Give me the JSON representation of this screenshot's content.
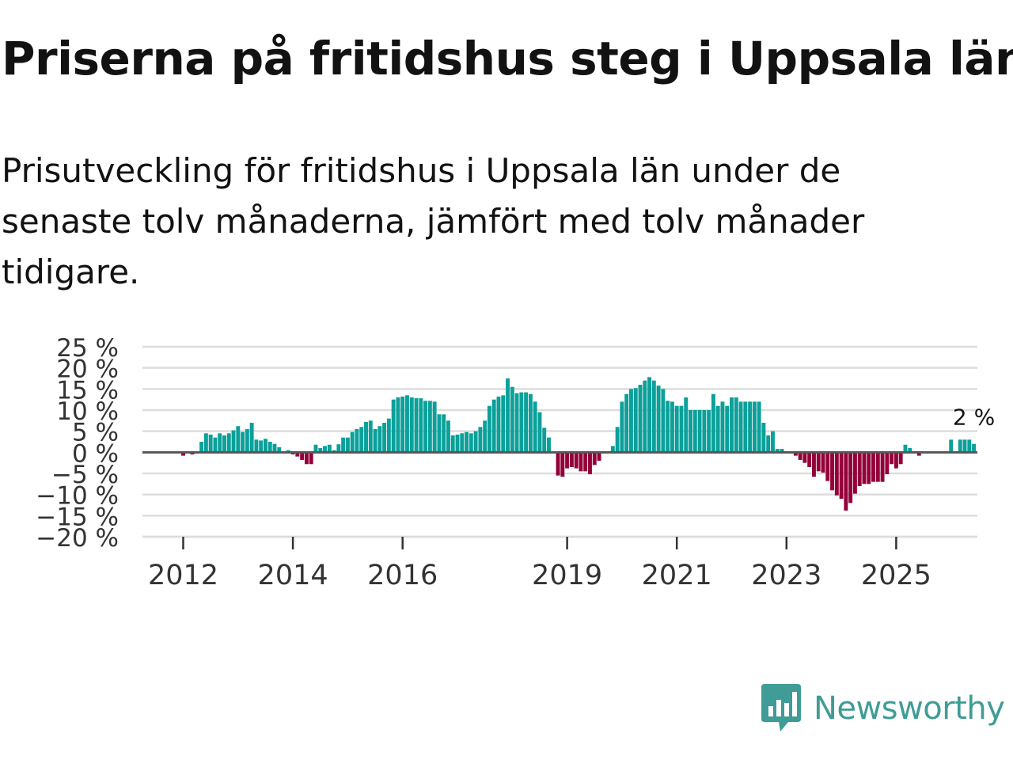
{
  "header": {
    "title": "Priserna på fritidshus steg i Uppsala län",
    "subtitle": "Prisutveckling för fritidshus i Uppsala län under de senaste tolv månaderna, jämfört med tolv månader tidigare."
  },
  "branding": {
    "name": "Newsworthy",
    "logo_icon": "bar-chart-speech-bubble-icon"
  },
  "colors": {
    "positive": "#0ba09a",
    "negative": "#93003a",
    "zero_line": "#555555",
    "grid": "#dddddd",
    "brand": "#3f9c96"
  },
  "chart_data": {
    "type": "bar",
    "title": "Priserna på fritidshus steg i Uppsala län",
    "ylabel": "",
    "xlabel": "",
    "ylim": [
      -20,
      25
    ],
    "y_ticks": [
      25,
      20,
      15,
      10,
      5,
      0,
      -5,
      -10,
      -15,
      -20
    ],
    "y_tick_labels": [
      "25 %",
      "20 %",
      "15 %",
      "10 %",
      "5 %",
      "0 %",
      "−5 %",
      "−10 %",
      "−15 %",
      "−20 %"
    ],
    "x_tick_labels": [
      "2012",
      "2014",
      "2016",
      "2019",
      "2021",
      "2023",
      "2025"
    ],
    "x_tick_years": [
      2012,
      2014,
      2016,
      2019,
      2021,
      2023,
      2025
    ],
    "series_start": "2011-01",
    "frequency": "monthly",
    "last_value_label": "2 %",
    "values": [
      null,
      null,
      null,
      null,
      null,
      null,
      null,
      null,
      null,
      null,
      null,
      null,
      -0.8,
      -0.2,
      -0.5,
      0,
      2.5,
      4.5,
      4.2,
      3.5,
      4.5,
      4.0,
      4.5,
      5.2,
      6.2,
      4.8,
      5.5,
      7.0,
      3.0,
      2.8,
      3.2,
      2.5,
      2.0,
      1.2,
      0,
      0.5,
      -0.5,
      -1.0,
      -1.8,
      -2.8,
      -2.8,
      1.8,
      1.0,
      1.5,
      1.8,
      0.5,
      1.9,
      3.5,
      3.5,
      4.8,
      5.5,
      6.0,
      7.2,
      7.5,
      5.5,
      6.2,
      7.0,
      8.0,
      12.5,
      13.0,
      13.2,
      13.5,
      13.0,
      12.8,
      12.8,
      12.2,
      12.2,
      12.0,
      9.0,
      9.0,
      7.5,
      4.0,
      4.2,
      4.5,
      4.8,
      4.5,
      5.0,
      6.0,
      7.5,
      11.0,
      12.5,
      13.2,
      13.5,
      17.5,
      15.5,
      14.0,
      14.2,
      14.2,
      13.8,
      12.0,
      9.5,
      5.8,
      3.5,
      0,
      -5.5,
      -5.8,
      -3.8,
      -3.5,
      -3.8,
      -4.5,
      -4.5,
      -5.2,
      -3.0,
      -2.0,
      null,
      null,
      1.5,
      6.0,
      12.0,
      13.8,
      15.0,
      15.2,
      16.0,
      17.0,
      17.8,
      17.0,
      15.8,
      15.0,
      12.2,
      12.0,
      11.0,
      11.0,
      13.0,
      10.0,
      10.0,
      10.0,
      10.0,
      10.0,
      13.8,
      11.0,
      12.0,
      11.0,
      13.0,
      13.0,
      12.0,
      12.0,
      12.0,
      12.0,
      12.0,
      7.0,
      4.0,
      5.0,
      0.8,
      0.8,
      null,
      null,
      -0.8,
      -1.8,
      -2.5,
      -3.5,
      -5.8,
      -4.5,
      -4.8,
      -6.8,
      -9.0,
      -10.2,
      -11.0,
      -13.8,
      -12.0,
      -9.8,
      -8.0,
      -7.5,
      -7.5,
      -7.0,
      -7.0,
      -7.0,
      -5.2,
      -2.8,
      -3.8,
      -2.8,
      1.8,
      1.0,
      null,
      -0.8,
      0,
      null,
      null,
      null,
      null,
      null,
      3.0,
      0,
      3.0,
      3.0,
      3.0,
      2.0
    ]
  }
}
